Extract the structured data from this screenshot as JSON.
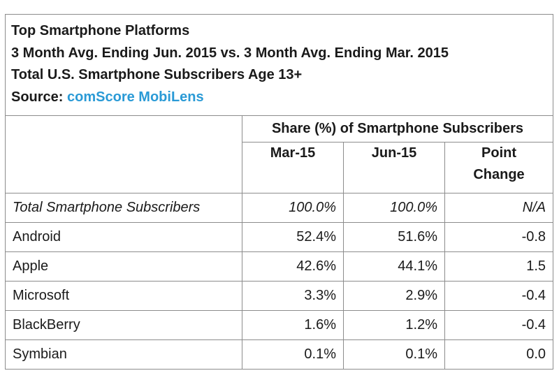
{
  "header": {
    "title": "Top Smartphone Platforms",
    "subtitle": "3 Month Avg. Ending Jun. 2015 vs. 3 Month Avg. Ending Mar. 2015",
    "population": "Total U.S. Smartphone Subscribers Age 13+",
    "source_label": "Source:",
    "source_name": "comScore MobiLens"
  },
  "table": {
    "group_header": "Share (%) of Smartphone Subscribers",
    "columns": [
      "Mar-15",
      "Jun-15",
      "Point",
      "Change"
    ],
    "rows": [
      {
        "platform": "Total Smartphone Subscribers",
        "mar": "100.0%",
        "jun": "100.0%",
        "change": "N/A"
      },
      {
        "platform": "Android",
        "mar": "52.4%",
        "jun": "51.6%",
        "change": "-0.8"
      },
      {
        "platform": "Apple",
        "mar": "42.6%",
        "jun": "44.1%",
        "change": "1.5"
      },
      {
        "platform": "Microsoft",
        "mar": "3.3%",
        "jun": "2.9%",
        "change": "-0.4"
      },
      {
        "platform": "BlackBerry",
        "mar": "1.6%",
        "jun": "1.2%",
        "change": "-0.4"
      },
      {
        "platform": "Symbian",
        "mar": "0.1%",
        "jun": "0.1%",
        "change": "0.0"
      }
    ]
  },
  "colors": {
    "border": "#8c8c8c",
    "source_link": "#2a9ad6",
    "text": "#1a1a1a"
  }
}
